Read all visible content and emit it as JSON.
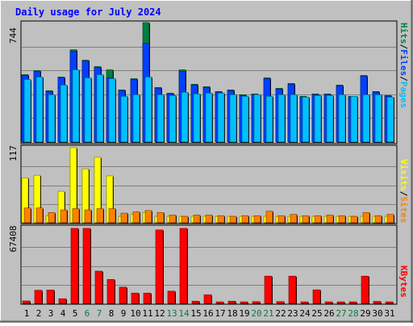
{
  "chart_data": [
    {
      "type": "bar",
      "title": "Daily usage for July 2024",
      "panel": "hits-files-pages",
      "categories": [
        "1",
        "2",
        "3",
        "4",
        "5",
        "6",
        "7",
        "8",
        "9",
        "10",
        "11",
        "12",
        "13",
        "14",
        "15",
        "16",
        "17",
        "18",
        "19",
        "20",
        "21",
        "22",
        "23",
        "24",
        "25",
        "26",
        "27",
        "28",
        "29",
        "30",
        "31"
      ],
      "weekend_days": [
        "6",
        "7",
        "13",
        "14",
        "20",
        "21",
        "27",
        "28"
      ],
      "y_max_label": "744",
      "ylim": [
        0,
        744
      ],
      "grid": true,
      "series": [
        {
          "name": "Hits",
          "color": "#008040",
          "values": [
            420,
            445,
            320,
            405,
            575,
            510,
            470,
            450,
            325,
            395,
            744,
            340,
            305,
            450,
            360,
            345,
            315,
            325,
            295,
            300,
            400,
            335,
            365,
            285,
            300,
            300,
            355,
            285,
            415,
            315,
            290
          ]
        },
        {
          "name": "Files",
          "color": "#0040ff",
          "values": [
            415,
            440,
            315,
            400,
            565,
            505,
            465,
            400,
            320,
            390,
            615,
            335,
            300,
            440,
            355,
            340,
            310,
            320,
            290,
            295,
            395,
            330,
            360,
            280,
            295,
            295,
            350,
            280,
            410,
            310,
            285
          ]
        },
        {
          "name": "Pages",
          "color": "#00c0ff",
          "values": [
            390,
            405,
            295,
            355,
            450,
            400,
            420,
            395,
            285,
            295,
            405,
            295,
            290,
            310,
            300,
            305,
            305,
            295,
            285,
            295,
            285,
            295,
            295,
            280,
            290,
            290,
            295,
            285,
            295,
            295,
            280
          ]
        }
      ]
    },
    {
      "type": "bar",
      "panel": "visits-sites",
      "categories": [
        "1",
        "2",
        "3",
        "4",
        "5",
        "6",
        "7",
        "8",
        "9",
        "10",
        "11",
        "12",
        "13",
        "14",
        "15",
        "16",
        "17",
        "18",
        "19",
        "20",
        "21",
        "22",
        "23",
        "24",
        "25",
        "26",
        "27",
        "28",
        "29",
        "30",
        "31"
      ],
      "y_max_label": "117",
      "ylim": [
        0,
        117
      ],
      "grid": true,
      "series": [
        {
          "name": "Visits",
          "color": "#ffff00",
          "values": [
            70,
            74,
            11,
            49,
            117,
            84,
            102,
            73,
            10,
            13,
            16,
            10,
            10,
            10,
            10,
            10,
            10,
            10,
            10,
            10,
            10,
            10,
            10,
            10,
            10,
            10,
            10,
            10,
            10,
            10,
            10
          ]
        },
        {
          "name": "Sites",
          "color": "#ff8000",
          "values": [
            23,
            23,
            16,
            20,
            22,
            20,
            22,
            22,
            15,
            17,
            19,
            16,
            12,
            10,
            12,
            12,
            11,
            10,
            11,
            11,
            18,
            11,
            13,
            11,
            11,
            12,
            11,
            10,
            16,
            11,
            13
          ]
        }
      ]
    },
    {
      "type": "bar",
      "panel": "kbytes",
      "categories": [
        "1",
        "2",
        "3",
        "4",
        "5",
        "6",
        "7",
        "8",
        "9",
        "10",
        "11",
        "12",
        "13",
        "14",
        "15",
        "16",
        "17",
        "18",
        "19",
        "20",
        "21",
        "22",
        "23",
        "24",
        "25",
        "26",
        "27",
        "28",
        "29",
        "30",
        "31"
      ],
      "y_max_label": "67408",
      "ylim": [
        0,
        67408
      ],
      "grid": true,
      "series": [
        {
          "name": "KBytes",
          "color": "#ff0000",
          "values": [
            2200,
            11800,
            12000,
            4200,
            67408,
            67408,
            29000,
            21500,
            14600,
            9300,
            9300,
            66000,
            11000,
            67408,
            2000,
            7800,
            1400,
            2000,
            1400,
            1600,
            24500,
            1600,
            24500,
            1400,
            12200,
            1400,
            1400,
            1400,
            24500,
            1800,
            1400
          ]
        }
      ]
    }
  ],
  "legend": {
    "panel1": {
      "pages": "Pages",
      "sep1": "/",
      "files": "Files",
      "sep2": "/",
      "hits": "Hits"
    },
    "panel2": {
      "sites": "Sites",
      "sep": "/",
      "visits": "Visits"
    },
    "panel3": {
      "kbytes": "KBytes"
    }
  },
  "colors": {
    "background": "#c0c0c0",
    "panel": "#c0c0c0",
    "title": "#0000ff",
    "weekday_label": "#000000",
    "weekend_label": "#008040"
  }
}
